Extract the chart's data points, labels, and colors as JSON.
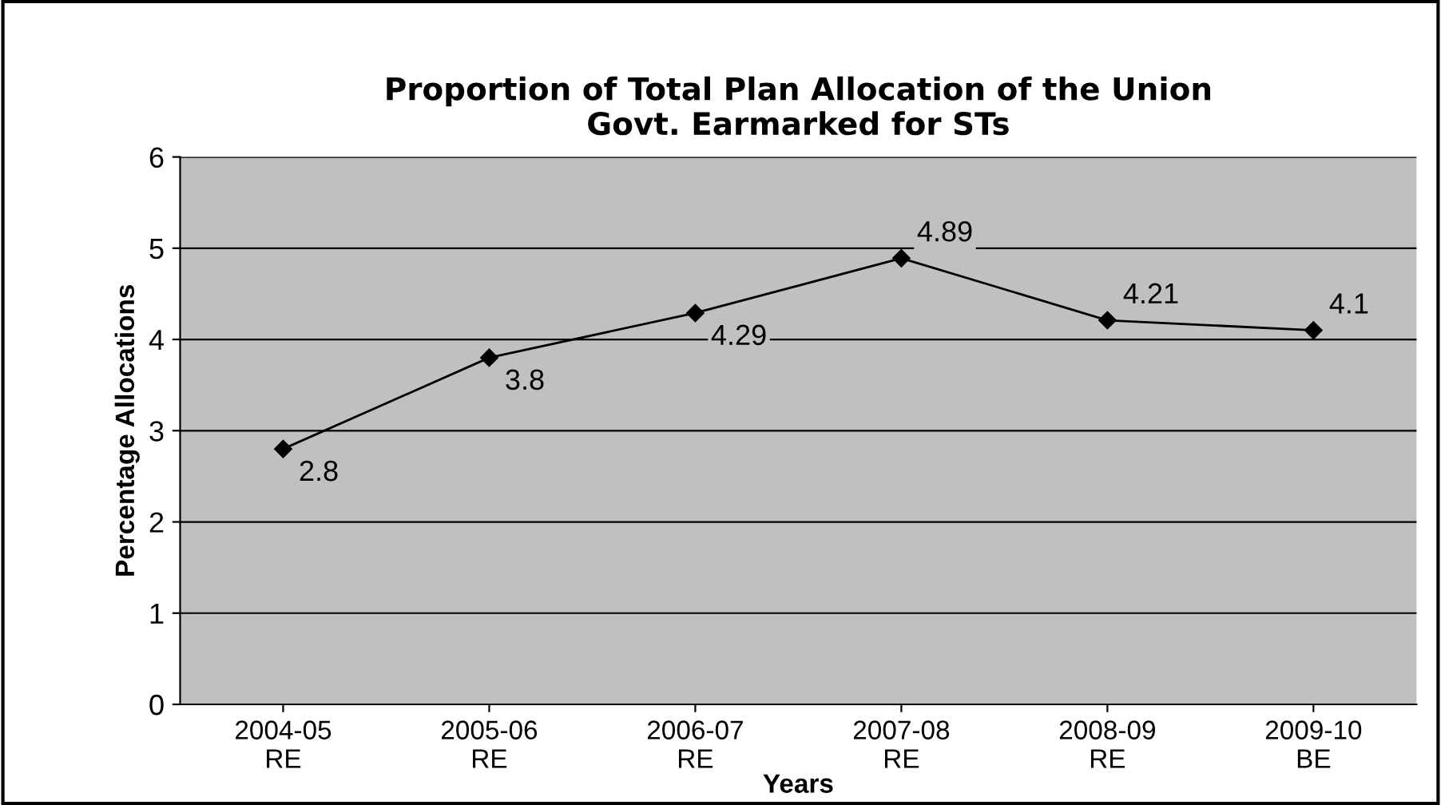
{
  "chart_data": {
    "type": "line",
    "title": "Proportion of Total Plan Allocation of the Union\nGovt. Earmarked for STs",
    "xlabel": "Years",
    "ylabel": "Percentage Allocations",
    "categories": [
      "2004-05\nRE",
      "2005-06\nRE",
      "2006-07\nRE",
      "2007-08\nRE",
      "2008-09\nRE",
      "2009-10\nBE"
    ],
    "values": [
      2.8,
      3.8,
      4.29,
      4.89,
      4.21,
      4.1
    ],
    "color": "#000000",
    "marker": "diamond",
    "line_style": "solid",
    "ylim": [
      0,
      6
    ],
    "yticks": [
      0,
      1,
      2,
      3,
      4,
      5,
      6
    ],
    "grid": "y",
    "legend": false,
    "data_labels": true
  }
}
